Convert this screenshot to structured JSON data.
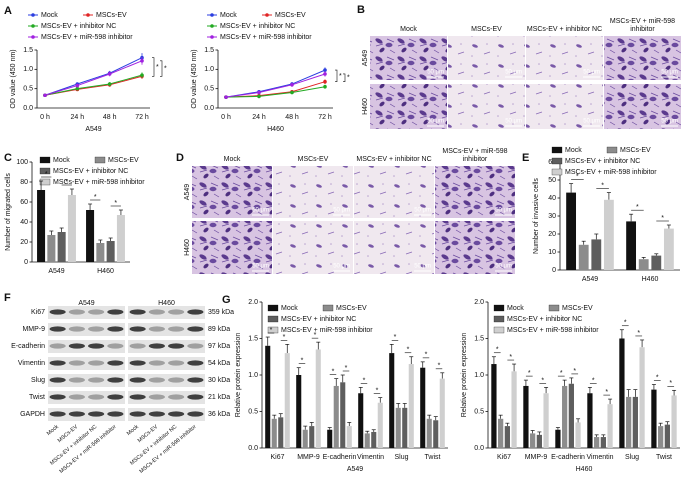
{
  "panel_labels": [
    "A",
    "B",
    "C",
    "D",
    "E",
    "F",
    "G"
  ],
  "chart_data": [
    {
      "type": "line",
      "ylabel": "OD value (450 nm)",
      "xlabel": "A549",
      "categories": [
        "0 h",
        "24 h",
        "48 h",
        "72 h"
      ],
      "ylim": [
        0,
        1.5
      ],
      "yticks": [
        {
          "value": 0,
          "label": "0.0"
        },
        0.5,
        {
          "value": 1,
          "label": "1.0"
        },
        1.5
      ],
      "series": [
        {
          "name": "Mock",
          "color": "#2b3ee0",
          "values": [
            0.33,
            0.62,
            0.9,
            1.3
          ],
          "errors": [
            0.03,
            0.04,
            0.06,
            0.12
          ]
        },
        {
          "name": "MSCs-EV",
          "color": "#e02525",
          "values": [
            0.33,
            0.48,
            0.6,
            0.82
          ],
          "errors": [
            0.03,
            0.04,
            0.05,
            0.07
          ]
        },
        {
          "name": "MSCs-EV + inhibitor NC",
          "color": "#22aa22",
          "values": [
            0.33,
            0.5,
            0.62,
            0.85
          ],
          "errors": [
            0.03,
            0.04,
            0.05,
            0.07
          ]
        },
        {
          "name": "MSCs-EV + miR-598 inhibitor",
          "color": "#a020e0",
          "values": [
            0.33,
            0.58,
            0.88,
            1.22
          ],
          "errors": [
            0.03,
            0.04,
            0.06,
            0.1
          ]
        }
      ],
      "annotations": [
        "*",
        "*"
      ]
    },
    {
      "type": "line",
      "ylabel": "OD value (450 nm)",
      "xlabel": "H460",
      "categories": [
        "0 h",
        "24 h",
        "48 h",
        "72 h"
      ],
      "ylim": [
        0,
        1.5
      ],
      "yticks": [
        {
          "value": 0,
          "label": "0.0"
        },
        0.5,
        {
          "value": 1,
          "label": "1.0"
        },
        1.5
      ],
      "series": [
        {
          "name": "Mock",
          "color": "#2b3ee0",
          "values": [
            0.28,
            0.42,
            0.62,
            0.98
          ],
          "errors": [
            0.03,
            0.03,
            0.05,
            0.07
          ]
        },
        {
          "name": "MSCs-EV",
          "color": "#e02525",
          "values": [
            0.28,
            0.32,
            0.42,
            0.68
          ],
          "errors": [
            0.03,
            0.03,
            0.04,
            0.06
          ]
        },
        {
          "name": "MSCs-EV + inhibitor NC",
          "color": "#22aa22",
          "values": [
            0.28,
            0.3,
            0.4,
            0.55
          ],
          "errors": [
            0.03,
            0.03,
            0.04,
            0.05
          ]
        },
        {
          "name": "MSCs-EV + miR-598 inhibitor",
          "color": "#a020e0",
          "values": [
            0.28,
            0.4,
            0.6,
            0.88
          ],
          "errors": [
            0.03,
            0.03,
            0.05,
            0.07
          ]
        }
      ],
      "annotations": [
        "*",
        "*"
      ]
    },
    {
      "type": "bar",
      "ylabel": "Number of migrated cells",
      "categories": [
        "A549",
        "H460"
      ],
      "ylim": [
        0,
        100
      ],
      "yticks": [
        0,
        20,
        40,
        60,
        80,
        100
      ],
      "series": [
        {
          "name": "Mock",
          "color": "#111111",
          "values": [
            72,
            52
          ],
          "errors": [
            9,
            6
          ]
        },
        {
          "name": "MSCs-EV",
          "color": "#8c8c8c",
          "values": [
            27,
            19
          ],
          "errors": [
            4,
            3
          ]
        },
        {
          "name": "MSCs-EV + inhibitor NC",
          "color": "#5e5e5e",
          "values": [
            30,
            21
          ],
          "errors": [
            4,
            3
          ]
        },
        {
          "name": "MSCs-EV + miR-598 inhibitor",
          "color": "#cfcfcf",
          "values": [
            67,
            47
          ],
          "errors": [
            6,
            5
          ]
        }
      ],
      "annotations": [
        "*",
        "*",
        "*",
        "*"
      ]
    },
    {
      "type": "bar",
      "ylabel": "Number of invasive cells",
      "categories": [
        "A549",
        "H460"
      ],
      "ylim": [
        0,
        60
      ],
      "yticks": [
        0,
        10,
        20,
        30,
        40,
        50,
        60
      ],
      "series": [
        {
          "name": "Mock",
          "color": "#111111",
          "values": [
            43,
            27
          ],
          "errors": [
            5,
            4
          ]
        },
        {
          "name": "MSCs-EV",
          "color": "#8c8c8c",
          "values": [
            14,
            6
          ],
          "errors": [
            2,
            1
          ]
        },
        {
          "name": "MSCs-EV + inhibitor NC",
          "color": "#5e5e5e",
          "values": [
            17,
            8
          ],
          "errors": [
            3,
            1
          ]
        },
        {
          "name": "MSCs-EV + miR-598 inhibitor",
          "color": "#cfcfcf",
          "values": [
            39,
            23
          ],
          "errors": [
            4,
            2
          ]
        }
      ],
      "annotations": [
        "*",
        "*",
        "*",
        "*"
      ]
    },
    {
      "type": "bar",
      "ylabel": "Relative protein expression",
      "xlabel": "A549",
      "categories": [
        "Ki67",
        "MMP-9",
        "E-cadherin",
        "Vimentin",
        "Slug",
        "Twist"
      ],
      "ylim": [
        0,
        2
      ],
      "yticks": [
        {
          "value": 0,
          "label": "0.0"
        },
        0.5,
        {
          "value": 1,
          "label": "1.0"
        },
        1.5,
        {
          "value": 2,
          "label": "2.0"
        }
      ],
      "series": [
        {
          "name": "Mock",
          "color": "#111111",
          "values": [
            1.4,
            1.0,
            0.25,
            0.75,
            1.3,
            1.1
          ],
          "errors": [
            0.12,
            0.1,
            0.03,
            0.08,
            0.12,
            0.08
          ]
        },
        {
          "name": "MSCs-EV",
          "color": "#8c8c8c",
          "values": [
            0.4,
            0.25,
            0.85,
            0.2,
            0.55,
            0.4
          ],
          "errors": [
            0.05,
            0.05,
            0.1,
            0.03,
            0.06,
            0.05
          ]
        },
        {
          "name": "MSCs-EV + inhibitor NC",
          "color": "#5e5e5e",
          "values": [
            0.42,
            0.3,
            0.9,
            0.22,
            0.55,
            0.38
          ],
          "errors": [
            0.05,
            0.05,
            0.1,
            0.03,
            0.06,
            0.05
          ]
        },
        {
          "name": "MSCs-EV + miR-598 inhibitor",
          "color": "#cfcfcf",
          "values": [
            1.3,
            1.35,
            0.3,
            0.62,
            1.15,
            0.95
          ],
          "errors": [
            0.12,
            0.1,
            0.05,
            0.07,
            0.1,
            0.08
          ]
        }
      ],
      "annotations": [
        "*",
        "*",
        "*",
        "*",
        "*",
        "*",
        "*",
        "*",
        "*",
        "*",
        "*",
        "*"
      ]
    },
    {
      "type": "bar",
      "ylabel": "Relative protein expression",
      "xlabel": "H460",
      "categories": [
        "Ki67",
        "MMP-9",
        "E-cadherin",
        "Vimentin",
        "Slug",
        "Twist"
      ],
      "ylim": [
        0,
        2
      ],
      "yticks": [
        {
          "value": 0,
          "label": "0.0"
        },
        0.5,
        {
          "value": 1,
          "label": "1.0"
        },
        1.5,
        {
          "value": 2,
          "label": "2.0"
        }
      ],
      "series": [
        {
          "name": "Mock",
          "color": "#111111",
          "values": [
            1.15,
            0.85,
            0.25,
            0.75,
            1.5,
            0.8
          ],
          "errors": [
            0.1,
            0.08,
            0.03,
            0.08,
            0.12,
            0.07
          ]
        },
        {
          "name": "MSCs-EV",
          "color": "#8c8c8c",
          "values": [
            0.4,
            0.2,
            0.85,
            0.15,
            0.7,
            0.3
          ],
          "errors": [
            0.05,
            0.04,
            0.08,
            0.03,
            0.1,
            0.04
          ]
        },
        {
          "name": "MSCs-EV + inhibitor NC",
          "color": "#5e5e5e",
          "values": [
            0.3,
            0.18,
            0.88,
            0.15,
            0.7,
            0.32
          ],
          "errors": [
            0.04,
            0.04,
            0.08,
            0.03,
            0.1,
            0.04
          ]
        },
        {
          "name": "MSCs-EV + miR-598 inhibitor",
          "color": "#cfcfcf",
          "values": [
            1.05,
            0.75,
            0.35,
            0.6,
            1.38,
            0.72
          ],
          "errors": [
            0.1,
            0.08,
            0.05,
            0.07,
            0.1,
            0.07
          ]
        }
      ],
      "annotations": [
        "*",
        "*",
        "*",
        "*",
        "*",
        "*",
        "*",
        "*",
        "*",
        "*",
        "*",
        "*"
      ]
    }
  ],
  "micrographs": [
    {
      "columns": [
        "Mock",
        "MSCs-EV",
        "MSCs-EV + inhibitor NC",
        "MSCs-EV + miR-598 inhibitor"
      ],
      "rows": [
        "A549",
        "H460"
      ],
      "scale_bar": "50 μm"
    },
    {
      "columns": [
        "Mock",
        "MSCs-EV",
        "MSCs-EV + inhibitor NC",
        "MSCs-EV + miR-598 inhibitor"
      ],
      "rows": [
        "A549",
        "H460"
      ],
      "scale_bar": "50 μm"
    }
  ],
  "blot": {
    "groups": [
      "A549",
      "H460"
    ],
    "proteins": [
      "Ki67",
      "MMP-9",
      "E-cadherin",
      "Vimentin",
      "Slug",
      "Twist",
      "GAPDH"
    ],
    "weights": [
      "359 kDa",
      "89 kDa",
      "97 kDa",
      "54 kDa",
      "30 kDa",
      "21 kDa",
      "36 kDa"
    ],
    "lanes": [
      "Mock",
      "MSCs-EV",
      "MSCs-EV + inhibitor NC",
      "MSCs-EV + miR-598 inhibitor"
    ]
  }
}
